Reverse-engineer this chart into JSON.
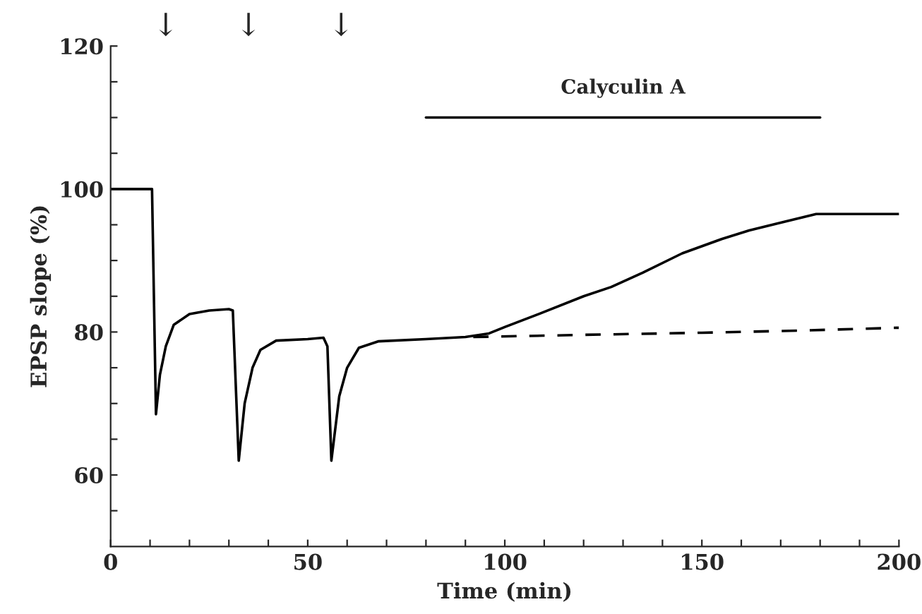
{
  "chart_data": {
    "type": "line",
    "xlabel": "Time (min)",
    "ylabel": "EPSP slope (%)",
    "xlim": [
      0,
      200
    ],
    "ylim": [
      50,
      120
    ],
    "xticks": [
      0,
      {
        "value": 10,
        "label": null
      },
      {
        "value": 20,
        "label": null
      },
      {
        "value": 30,
        "label": null
      },
      {
        "value": 40,
        "label": null
      },
      50,
      {
        "value": 60,
        "label": null
      },
      {
        "value": 70,
        "label": null
      },
      {
        "value": 80,
        "label": null
      },
      {
        "value": 90,
        "label": null
      },
      100,
      {
        "value": 110,
        "label": null
      },
      {
        "value": 120,
        "label": null
      },
      {
        "value": 130,
        "label": null
      },
      {
        "value": 140,
        "label": null
      },
      150,
      {
        "value": 160,
        "label": null
      },
      {
        "value": 170,
        "label": null
      },
      {
        "value": 180,
        "label": null
      },
      {
        "value": 190,
        "label": null
      },
      200
    ],
    "yticks": [
      {
        "value": 55,
        "label": null
      },
      60,
      {
        "value": 65,
        "label": null
      },
      {
        "value": 70,
        "label": null
      },
      {
        "value": 75,
        "label": null
      },
      80,
      {
        "value": 85,
        "label": null
      },
      {
        "value": 90,
        "label": null
      },
      {
        "value": 95,
        "label": null
      },
      100,
      {
        "value": 105,
        "label": null
      },
      {
        "value": 110,
        "label": null
      },
      {
        "value": 115,
        "label": null
      },
      120
    ],
    "grid": false,
    "legend": false,
    "series": [
      {
        "color": "#000000",
        "line_style": "solid",
        "x": [
          0,
          10.5,
          11.5,
          12.5,
          14,
          16,
          20,
          25,
          30,
          31,
          32.5,
          34,
          36,
          38,
          42,
          50,
          54,
          55,
          56,
          58,
          60,
          63,
          68,
          80,
          90,
          96,
          100,
          109,
          120,
          127,
          135,
          145,
          155,
          162,
          170,
          179,
          190,
          200
        ],
        "values": [
          100,
          100,
          68.5,
          74,
          78,
          81,
          82.5,
          83,
          83.2,
          83,
          62,
          70,
          75,
          77.5,
          78.8,
          79,
          79.2,
          78,
          62,
          71,
          75,
          77.8,
          78.7,
          79,
          79.3,
          79.8,
          80.7,
          82.6,
          85,
          86.3,
          88.3,
          91,
          93,
          94.2,
          95.3,
          96.5,
          96.5,
          96.5
        ]
      },
      {
        "color": "#000000",
        "line_style": "dashed",
        "x": [
          92,
          120,
          150,
          175,
          200
        ],
        "values": [
          79.3,
          79.6,
          79.9,
          80.2,
          80.6
        ]
      },
      {
        "name": "Calyculin A",
        "color": "#000000",
        "line_style": "solid",
        "x": [
          80,
          180
        ],
        "values": [
          110,
          110
        ]
      }
    ],
    "annotations": [
      "↓",
      "↓",
      "↓"
    ]
  }
}
